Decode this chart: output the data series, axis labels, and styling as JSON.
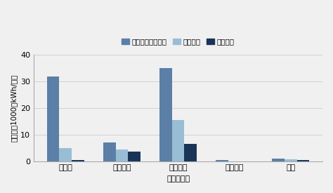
{
  "categories": [
    "太陽光",
    "陸上風力",
    "洋上風力",
    "中小水力",
    "地熱"
  ],
  "series": {
    "導入ポテンシャル": [
      32,
      7,
      35,
      0.5,
      1.0
    ],
    "高位推計": [
      5,
      4.5,
      15.5,
      0.0,
      0.7
    ],
    "低位推計": [
      0.4,
      3.5,
      6.5,
      0.0,
      0.5
    ]
  },
  "colors": {
    "導入ポテンシャル": "#5b7fa6",
    "高位推計": "#9abdd6",
    "低位推計": "#1a3458"
  },
  "ylabel": "発電量（1000億kWh/年）",
  "xlabel": "再エネ種別",
  "ylim": [
    0,
    40
  ],
  "yticks": [
    0,
    10,
    20,
    30,
    40
  ],
  "legend_labels": [
    "導入ポテンシャル",
    "高位推計",
    "低位推計"
  ],
  "background_color": "#f0f0f0",
  "bar_width": 0.22
}
